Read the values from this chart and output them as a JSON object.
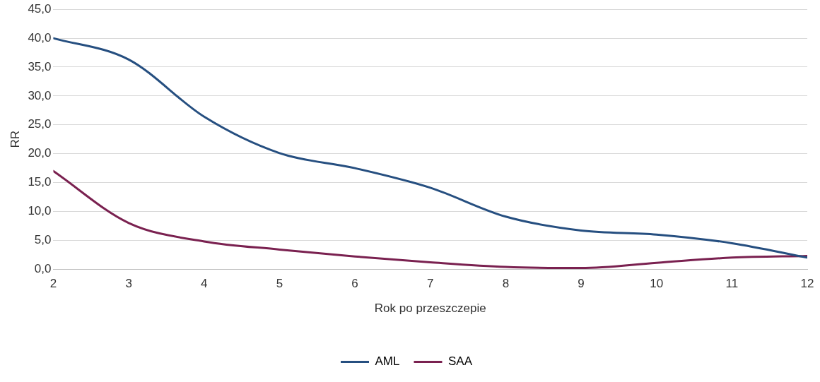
{
  "chart_data": {
    "type": "line",
    "xlabel": "Rok po przeszczepie",
    "ylabel": "RR",
    "x": [
      2,
      3,
      4,
      5,
      6,
      7,
      8,
      9,
      10,
      11,
      12
    ],
    "series": [
      {
        "name": "AML",
        "color": "#264f80",
        "values": [
          40.0,
          36.3,
          26.4,
          20.1,
          17.5,
          14.1,
          9.1,
          6.7,
          6.0,
          4.5,
          2.0
        ]
      },
      {
        "name": "SAA",
        "color": "#7a2150",
        "values": [
          17.0,
          8.0,
          4.8,
          3.4,
          2.2,
          1.2,
          0.4,
          0.2,
          1.1,
          2.0,
          2.3
        ]
      }
    ],
    "xlim": [
      2,
      12
    ],
    "xticks": [
      2,
      3,
      4,
      5,
      6,
      7,
      8,
      9,
      10,
      11,
      12
    ],
    "ylim": [
      0,
      45
    ],
    "yticks": [
      {
        "value": 0,
        "label": "0,0"
      },
      {
        "value": 5,
        "label": "5,0"
      },
      {
        "value": 10,
        "label": "10,0"
      },
      {
        "value": 15,
        "label": "15,0"
      },
      {
        "value": 20,
        "label": "20,0"
      },
      {
        "value": 25,
        "label": "25,0"
      },
      {
        "value": 30,
        "label": "30,0"
      },
      {
        "value": 35,
        "label": "35,0"
      },
      {
        "value": 40,
        "label": "40,0"
      },
      {
        "value": 45,
        "label": "45,0"
      }
    ],
    "grid": "y",
    "legend": "bottom",
    "marker": "none",
    "line_style": "solid"
  }
}
